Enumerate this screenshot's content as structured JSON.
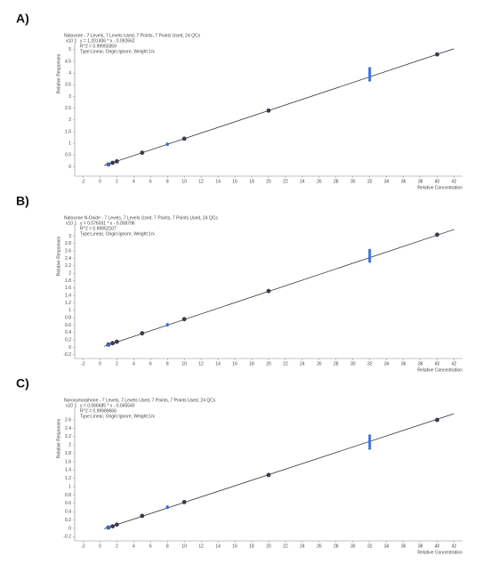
{
  "chart_data": [
    {
      "type": "scatter",
      "panel_label": "A)",
      "title": "Naloxone - 7 Levels, 7 Levels Used, 7 Points, 7 Points Used, 24 QCs",
      "annotations": [
        "y = 1.201406 * x - 0.092662",
        "R^2 = 0.99950359",
        "Type:Linear, Origin:Ignore, Weight:1/x"
      ],
      "y_multiplier": "x10 1",
      "ylabel": "Relative Responses",
      "xlabel": "Relative Concentration",
      "xlim": [
        -3,
        43
      ],
      "xticks": [
        -2,
        0,
        2,
        4,
        6,
        8,
        10,
        12,
        14,
        16,
        18,
        20,
        22,
        24,
        26,
        28,
        30,
        32,
        34,
        36,
        38,
        40,
        42
      ],
      "ylim": [
        -0.4,
        5.3
      ],
      "yticks": [
        0,
        0.5,
        1,
        1.5,
        2,
        2.5,
        3,
        3.5,
        4,
        4.5,
        5
      ],
      "fit_line": {
        "x": [
          0.5,
          42
        ],
        "values": [
          0.06,
          5.04
        ],
        "color": "#333333"
      },
      "series": [
        {
          "color": "#3a3a4a",
          "x": [
            1,
            1.5,
            2,
            5,
            10,
            20,
            40
          ],
          "values": [
            0.1,
            0.17,
            0.23,
            0.6,
            1.2,
            2.4,
            4.8
          ]
        },
        {
          "color": "#3b6fe0",
          "x": [
            1,
            1,
            8,
            8,
            32,
            32,
            32,
            32,
            32,
            32
          ],
          "values": [
            0.12,
            0.08,
            0.95,
            0.98,
            3.7,
            3.8,
            3.9,
            4.0,
            4.1,
            4.2
          ]
        }
      ]
    },
    {
      "type": "scatter",
      "panel_label": "B)",
      "title": "Naloxone N-Oxide - 7 Levels, 7 Levels Used, 7 Points, 7 Points Used, 24 QCs",
      "annotations": [
        "y = 0.076031 * x - 0.008796",
        "R^2 = 0.99952107",
        "Type:Linear, Origin:Ignore, Weight:1/x"
      ],
      "y_multiplier": "x10 1",
      "ylabel": "Relative Responses",
      "xlabel": "Relative Concentration",
      "xlim": [
        -3,
        43
      ],
      "xticks": [
        -2,
        0,
        2,
        4,
        6,
        8,
        10,
        12,
        14,
        16,
        18,
        20,
        22,
        24,
        26,
        28,
        30,
        32,
        34,
        36,
        38,
        40,
        42
      ],
      "ylim": [
        -0.3,
        3.3
      ],
      "yticks": [
        -0.2,
        0,
        0.2,
        0.4,
        0.6,
        0.8,
        1,
        1.2,
        1.4,
        1.6,
        1.8,
        2,
        2.2,
        2.4,
        2.6,
        2.8,
        3
      ],
      "fit_line": {
        "x": [
          0.5,
          42
        ],
        "values": [
          0.03,
          3.18
        ],
        "color": "#333333"
      },
      "series": [
        {
          "color": "#3a3a4a",
          "x": [
            1,
            1.5,
            2,
            5,
            10,
            20,
            40
          ],
          "values": [
            0.076,
            0.114,
            0.152,
            0.38,
            0.76,
            1.52,
            3.04
          ]
        },
        {
          "color": "#3b6fe0",
          "x": [
            1,
            1,
            8,
            8,
            32,
            32,
            32,
            32,
            32,
            32
          ],
          "values": [
            0.08,
            0.05,
            0.6,
            0.62,
            2.32,
            2.38,
            2.44,
            2.5,
            2.56,
            2.62
          ]
        }
      ]
    },
    {
      "type": "scatter",
      "panel_label": "C)",
      "title": "Noroxymorphone - 7 Levels, 7 Levels Used, 7 Points, 7 Points Used, 24 QCs",
      "annotations": [
        "y = 0.066685 * x - 0.045540",
        "R^2 = 0.99989666",
        "Type:Linear, Origin:Ignore, Weight:1/x"
      ],
      "y_multiplier": "x10 1",
      "ylabel": "Relative Responses",
      "xlabel": "Relative Concentration",
      "xlim": [
        -3,
        43
      ],
      "xticks": [
        -2,
        0,
        2,
        4,
        6,
        8,
        10,
        12,
        14,
        16,
        18,
        20,
        22,
        24,
        26,
        28,
        30,
        32,
        34,
        36,
        38,
        40,
        42
      ],
      "ylim": [
        -0.3,
        2.9
      ],
      "yticks": [
        -0.2,
        0,
        0.2,
        0.4,
        0.6,
        0.8,
        1,
        1.2,
        1.4,
        1.6,
        1.8,
        2,
        2.2,
        2.4,
        2.6
      ],
      "fit_line": {
        "x": [
          0.5,
          42
        ],
        "values": [
          -0.01,
          2.75
        ],
        "color": "#333333"
      },
      "series": [
        {
          "color": "#3a3a4a",
          "x": [
            1,
            1.5,
            2,
            5,
            10,
            20,
            40
          ],
          "values": [
            0.02,
            0.05,
            0.09,
            0.3,
            0.63,
            1.28,
            2.6
          ]
        },
        {
          "color": "#3b6fe0",
          "x": [
            1,
            1,
            8,
            8,
            32,
            32,
            32,
            32,
            32,
            32
          ],
          "values": [
            0.04,
            0.01,
            0.5,
            0.52,
            1.92,
            1.98,
            2.04,
            2.1,
            2.16,
            2.22
          ]
        }
      ]
    }
  ]
}
